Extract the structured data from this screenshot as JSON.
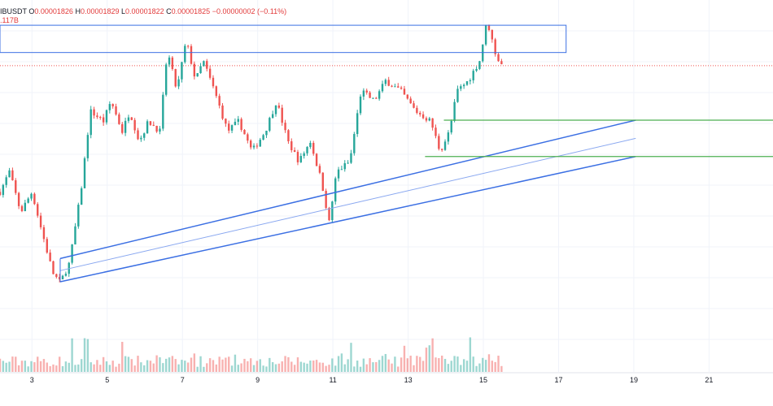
{
  "legend": {
    "symbol": "IBUSDT",
    "o_label": "O",
    "o_value": "0.00001826",
    "h_label": "H",
    "h_value": "0.00001829",
    "l_label": "L",
    "l_value": "0.00001822",
    "c_label": "C",
    "c_value": "0.00001825",
    "change": "−0.00000002 (−0.11%)",
    "volume": ".117B"
  },
  "colors": {
    "up": "#26a69a",
    "down": "#ef5350",
    "channel": "#3b6fe3",
    "channel_mid": "#8aa8f0",
    "box": "#3b6fe3",
    "support": "#4caf50",
    "price_line": "#ef5350",
    "grid": "#f0f3fa"
  },
  "chart_data": {
    "type": "candlestick",
    "x_unit": "day",
    "x_range": [
      2.15,
      22.7
    ],
    "y_range": [
      1.57e-05,
      1.89e-05
    ],
    "grid": true,
    "x_ticks": [
      {
        "value": 3,
        "label": "3"
      },
      {
        "value": 5,
        "label": "5"
      },
      {
        "value": 7,
        "label": "7"
      },
      {
        "value": 9,
        "label": "9"
      },
      {
        "value": 11,
        "label": "11"
      },
      {
        "value": 13,
        "label": "13"
      },
      {
        "value": 15,
        "label": "15"
      },
      {
        "value": 17,
        "label": "17"
      },
      {
        "value": 19,
        "label": "19"
      },
      {
        "value": 21,
        "label": "21"
      }
    ],
    "last_close": 1.825e-05,
    "anchors": [
      [
        2.15,
        1.7e-05
      ],
      [
        2.4,
        1.72e-05
      ],
      [
        2.7,
        1.68e-05
      ],
      [
        3.0,
        1.7e-05
      ],
      [
        3.2,
        1.67e-05
      ],
      [
        3.55,
        1.62e-05
      ],
      [
        3.75,
        1.61e-05
      ],
      [
        4.0,
        1.63e-05
      ],
      [
        4.3,
        1.7e-05
      ],
      [
        4.55,
        1.78e-05
      ],
      [
        4.9,
        1.77e-05
      ],
      [
        5.1,
        1.79e-05
      ],
      [
        5.4,
        1.76e-05
      ],
      [
        5.6,
        1.78e-05
      ],
      [
        5.85,
        1.75e-05
      ],
      [
        6.1,
        1.77e-05
      ],
      [
        6.4,
        1.76e-05
      ],
      [
        6.6,
        1.84e-05
      ],
      [
        6.85,
        1.8e-05
      ],
      [
        7.1,
        1.85e-05
      ],
      [
        7.35,
        1.81e-05
      ],
      [
        7.55,
        1.83e-05
      ],
      [
        7.85,
        1.8e-05
      ],
      [
        8.2,
        1.76e-05
      ],
      [
        8.5,
        1.77e-05
      ],
      [
        8.85,
        1.74e-05
      ],
      [
        9.2,
        1.76e-05
      ],
      [
        9.5,
        1.79e-05
      ],
      [
        9.8,
        1.75e-05
      ],
      [
        10.1,
        1.73e-05
      ],
      [
        10.4,
        1.75e-05
      ],
      [
        10.7,
        1.71e-05
      ],
      [
        10.9,
        1.67e-05
      ],
      [
        11.1,
        1.72e-05
      ],
      [
        11.45,
        1.73e-05
      ],
      [
        11.75,
        1.8e-05
      ],
      [
        12.1,
        1.79e-05
      ],
      [
        12.4,
        1.81e-05
      ],
      [
        12.8,
        1.8e-05
      ],
      [
        13.2,
        1.78e-05
      ],
      [
        13.6,
        1.77e-05
      ],
      [
        13.85,
        1.74e-05
      ],
      [
        14.1,
        1.76e-05
      ],
      [
        14.3,
        1.8e-05
      ],
      [
        14.6,
        1.81e-05
      ],
      [
        14.9,
        1.83e-05
      ],
      [
        15.1,
        1.87e-05
      ],
      [
        15.3,
        1.84e-05
      ],
      [
        15.45,
        1.826e-05
      ],
      [
        15.55,
        1.825e-05
      ]
    ],
    "candles_per_day": 12,
    "annotations": {
      "resistance_box": {
        "x0": 2.15,
        "x1": 17.2,
        "y0": 1.838e-05,
        "y1": 1.865e-05
      },
      "channel_upper": {
        "x0": 3.75,
        "y0": 1.634e-05,
        "x1": 19.05,
        "y1": 1.771e-05
      },
      "channel_lower": {
        "x0": 3.75,
        "y0": 1.611e-05,
        "x1": 19.05,
        "y1": 1.735e-05
      },
      "channel_mid": {
        "x0": 3.75,
        "y0": 1.622e-05,
        "x1": 19.05,
        "y1": 1.753e-05
      },
      "support_upper": {
        "x0": 13.95,
        "x1": 22.7,
        "y": 1.771e-05
      },
      "support_lower": {
        "x0": 13.45,
        "x1": 22.7,
        "y": 1.735e-05
      }
    }
  }
}
